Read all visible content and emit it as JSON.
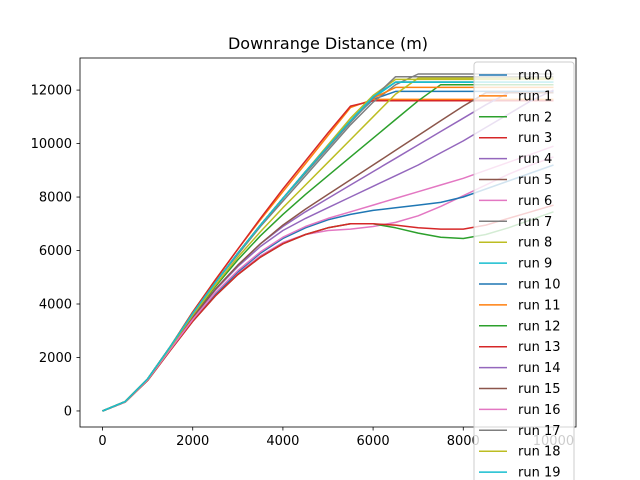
{
  "chart_data": {
    "type": "line",
    "title": "Downrange Distance (m)",
    "xlabel": "",
    "ylabel": "",
    "xlim": [
      -500,
      10500
    ],
    "ylim": [
      -600,
      13200
    ],
    "xticks": [
      0,
      2000,
      4000,
      6000,
      8000,
      10000
    ],
    "yticks": [
      0,
      2000,
      4000,
      6000,
      8000,
      10000,
      12000
    ],
    "grid": false,
    "legend_position": "top-right",
    "colors": [
      "#1f77b4",
      "#ff7f0e",
      "#2ca02c",
      "#d62728",
      "#9467bd",
      "#8c564b",
      "#e377c2",
      "#7f7f7f",
      "#bcbd22",
      "#17becf"
    ],
    "x": [
      0,
      500,
      1000,
      1500,
      2000,
      2500,
      3000,
      3500,
      4000,
      4500,
      5000,
      5500,
      6000,
      6500,
      7000,
      7500,
      8000,
      8500,
      9000,
      9500,
      10000
    ],
    "series": [
      {
        "name": "run 0",
        "values": [
          0,
          350,
          1200,
          2400,
          3650,
          4800,
          5900,
          6950,
          7950,
          8950,
          9900,
          10850,
          11650,
          11950,
          11950,
          11950,
          11950,
          11950,
          11950,
          11950,
          11950
        ]
      },
      {
        "name": "run 1",
        "values": [
          0,
          350,
          1200,
          2400,
          3700,
          4900,
          6050,
          7150,
          8200,
          9250,
          10300,
          11350,
          11650,
          11650,
          11650,
          11650,
          11650,
          11650,
          11650,
          11650,
          11650
        ]
      },
      {
        "name": "run 2",
        "values": [
          0,
          340,
          1180,
          2350,
          3550,
          4650,
          5650,
          6550,
          7350,
          8100,
          8800,
          9500,
          10200,
          10900,
          11600,
          12200,
          12200,
          12200,
          12200,
          12200,
          12200
        ]
      },
      {
        "name": "run 3",
        "values": [
          0,
          350,
          1200,
          2400,
          3700,
          4900,
          6050,
          7200,
          8300,
          9350,
          10400,
          11400,
          11600,
          11600,
          11600,
          11600,
          11600,
          11600,
          11600,
          11600,
          11600
        ]
      },
      {
        "name": "run 4",
        "values": [
          0,
          340,
          1170,
          2330,
          3480,
          4520,
          5400,
          6150,
          6750,
          7200,
          7600,
          8000,
          8400,
          8800,
          9200,
          9650,
          10100,
          10600,
          11100,
          11600,
          12000
        ]
      },
      {
        "name": "run 5",
        "values": [
          0,
          350,
          1200,
          2400,
          3650,
          4800,
          5900,
          6950,
          7950,
          8950,
          9900,
          10850,
          11750,
          12300,
          12300,
          12300,
          12300,
          12300,
          12300,
          12300,
          12300
        ]
      },
      {
        "name": "run 6",
        "values": [
          0,
          330,
          1150,
          2280,
          3380,
          4350,
          5150,
          5800,
          6300,
          6600,
          6750,
          6800,
          6900,
          7050,
          7300,
          7650,
          8050,
          8450,
          8850,
          9200,
          9500
        ]
      },
      {
        "name": "run 7",
        "values": [
          0,
          350,
          1200,
          2400,
          3650,
          4800,
          5850,
          6900,
          7850,
          8800,
          9750,
          10700,
          11550,
          12200,
          12600,
          12600,
          12600,
          12600,
          12600,
          12600,
          12600
        ]
      },
      {
        "name": "run 8",
        "values": [
          0,
          350,
          1200,
          2400,
          3650,
          4800,
          5900,
          6950,
          7950,
          8950,
          9950,
          10950,
          11800,
          12400,
          12400,
          12400,
          12400,
          12400,
          12400,
          12400,
          12400
        ]
      },
      {
        "name": "run 9",
        "values": [
          0,
          350,
          1200,
          2400,
          3650,
          4800,
          5900,
          6950,
          7950,
          8900,
          9850,
          10800,
          11700,
          12300,
          12300,
          12300,
          12300,
          12300,
          12300,
          12300,
          12300
        ]
      },
      {
        "name": "run 10",
        "values": [
          0,
          330,
          1150,
          2280,
          3380,
          4350,
          5200,
          5900,
          6450,
          6850,
          7150,
          7350,
          7500,
          7600,
          7700,
          7800,
          8000,
          8300,
          8600,
          8900,
          9200
        ]
      },
      {
        "name": "run 11",
        "values": [
          0,
          350,
          1200,
          2400,
          3650,
          4800,
          5900,
          6950,
          7950,
          8950,
          9900,
          10850,
          11700,
          12100,
          12100,
          12100,
          12100,
          12100,
          12100,
          12100,
          12100
        ]
      },
      {
        "name": "run 12",
        "values": [
          0,
          330,
          1140,
          2260,
          3350,
          4300,
          5100,
          5750,
          6250,
          6600,
          6850,
          7000,
          7000,
          6850,
          6650,
          6500,
          6450,
          6600,
          6850,
          7150,
          7450
        ]
      },
      {
        "name": "run 13",
        "values": [
          0,
          330,
          1140,
          2260,
          3350,
          4300,
          5100,
          5750,
          6250,
          6600,
          6850,
          7000,
          7000,
          6950,
          6850,
          6800,
          6800,
          6950,
          7200,
          7450,
          7700
        ]
      },
      {
        "name": "run 14",
        "values": [
          0,
          340,
          1170,
          2330,
          3500,
          4550,
          5450,
          6250,
          6900,
          7450,
          7950,
          8450,
          8950,
          9450,
          9950,
          10450,
          10950,
          11450,
          11900,
          11900,
          11900
        ]
      },
      {
        "name": "run 15",
        "values": [
          0,
          340,
          1170,
          2330,
          3500,
          4550,
          5450,
          6250,
          6950,
          7550,
          8100,
          8650,
          9200,
          9750,
          10300,
          10850,
          11400,
          11900,
          11900,
          11900,
          11900
        ]
      },
      {
        "name": "run 16",
        "values": [
          0,
          335,
          1160,
          2300,
          3420,
          4420,
          5250,
          5950,
          6500,
          6900,
          7200,
          7450,
          7700,
          7950,
          8200,
          8450,
          8700,
          9000,
          9300,
          9600,
          9900
        ]
      },
      {
        "name": "run 17",
        "values": [
          0,
          350,
          1200,
          2400,
          3650,
          4800,
          5900,
          6950,
          7950,
          8900,
          9850,
          10800,
          11700,
          12500,
          12500,
          12500,
          12500,
          12500,
          12500,
          12500,
          12500
        ]
      },
      {
        "name": "run 18",
        "values": [
          0,
          345,
          1190,
          2370,
          3580,
          4700,
          5750,
          6700,
          7600,
          8450,
          9300,
          10150,
          11000,
          11850,
          12450,
          12450,
          12450,
          12450,
          12450,
          12450,
          12450
        ]
      },
      {
        "name": "run 19",
        "values": [
          0,
          350,
          1200,
          2400,
          3650,
          4800,
          5900,
          6950,
          7950,
          8950,
          9900,
          10850,
          11750,
          12300,
          12300,
          12300,
          12300,
          12300,
          12300,
          12300,
          12300
        ]
      }
    ]
  }
}
